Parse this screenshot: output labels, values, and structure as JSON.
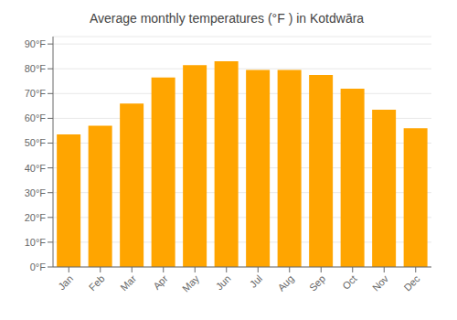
{
  "chart_data": {
    "type": "bar",
    "title": "Average monthly temperatures (°F ) in Kotdwāra",
    "categories": [
      "Jan",
      "Feb",
      "Mar",
      "Apr",
      "May",
      "Jun",
      "Jul",
      "Aug",
      "Sep",
      "Oct",
      "Nov",
      "Dec"
    ],
    "values": [
      53.5,
      57.0,
      66.0,
      76.5,
      81.5,
      83.0,
      79.5,
      79.5,
      77.5,
      72.0,
      63.5,
      56.0
    ],
    "color": "#FFA500",
    "ylim": [
      0,
      93
    ],
    "yticks": [
      {
        "value": 0,
        "label": "0°F"
      },
      {
        "value": 10,
        "label": "10°F"
      },
      {
        "value": 20,
        "label": "20°F"
      },
      {
        "value": 30,
        "label": "30°F"
      },
      {
        "value": 40,
        "label": "40°F"
      },
      {
        "value": 50,
        "label": "50°F"
      },
      {
        "value": 60,
        "label": "60°F"
      },
      {
        "value": 70,
        "label": "70°F"
      },
      {
        "value": 80,
        "label": "80°F"
      },
      {
        "value": 90,
        "label": "90°F"
      }
    ],
    "grid": true
  }
}
